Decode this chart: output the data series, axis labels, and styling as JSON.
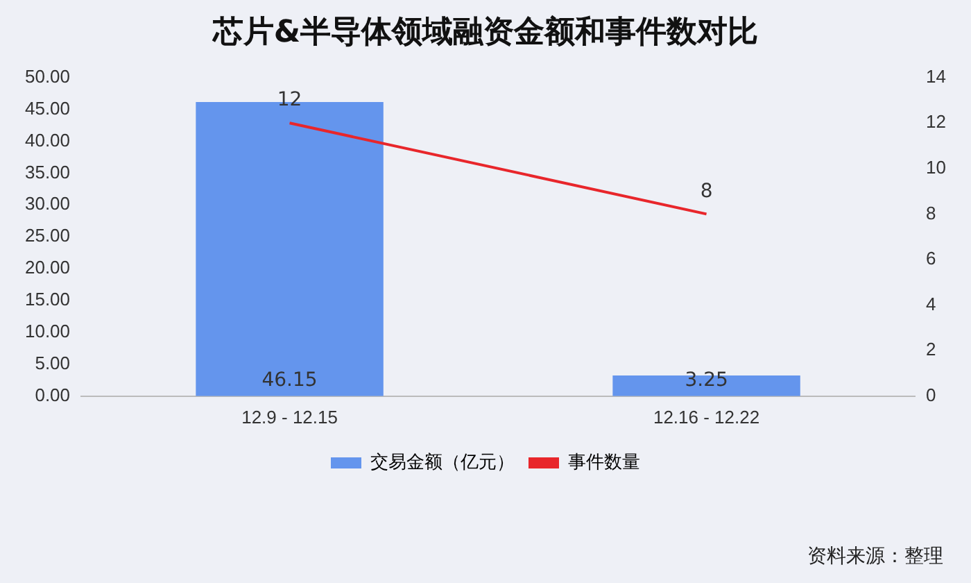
{
  "chart_data": {
    "type": "bar",
    "title": "芯片&半导体领域融资金额和事件数对比",
    "categories": [
      "12.9 - 12.15",
      "12.16 - 12.22"
    ],
    "series": [
      {
        "name": "交易金额（亿元）",
        "color": "#6495ed",
        "values": [
          46.15,
          3.25
        ]
      },
      {
        "name": "事件数量",
        "type": "line",
        "axis": "y2",
        "color": "#e8262b",
        "values": [
          12,
          8
        ]
      }
    ],
    "ylim": [
      0,
      50
    ],
    "yticks": [
      {
        "value": 0,
        "label": "0.00"
      },
      {
        "value": 5,
        "label": "5.00"
      },
      {
        "value": 10,
        "label": "10.00"
      },
      {
        "value": 15,
        "label": "15.00"
      },
      {
        "value": 20,
        "label": "20.00"
      },
      {
        "value": 25,
        "label": "25.00"
      },
      {
        "value": 30,
        "label": "30.00"
      },
      {
        "value": 35,
        "label": "35.00"
      },
      {
        "value": 40,
        "label": "40.00"
      },
      {
        "value": 45,
        "label": "45.00"
      },
      {
        "value": 50,
        "label": "50.00"
      }
    ],
    "y2lim": [
      0,
      14
    ],
    "y2ticks": [
      0,
      2,
      4,
      6,
      8,
      10,
      12,
      14
    ],
    "grid": false,
    "legend": "bottom",
    "marker": "none",
    "data_labels": true,
    "annotations": [
      "资料来源：整理"
    ]
  }
}
